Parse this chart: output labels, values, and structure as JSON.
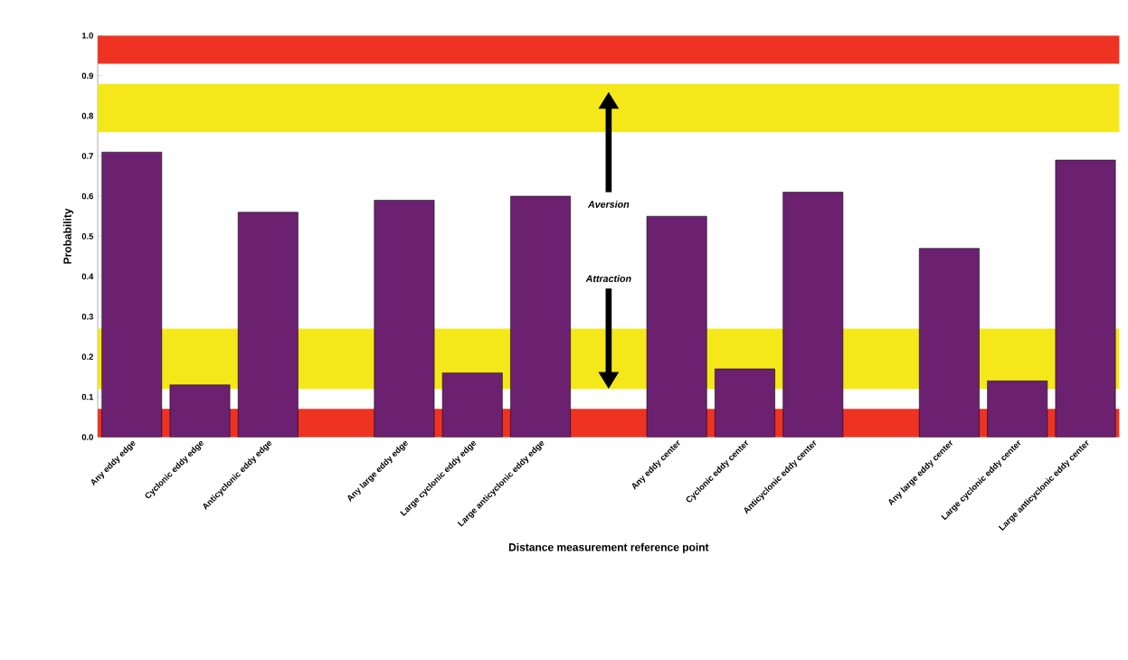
{
  "chart_data": {
    "type": "bar",
    "xlabel": "Distance measurement reference point",
    "ylabel": "Probability",
    "categories": [
      "Any eddy edge",
      "Cyclonic eddy edge",
      "Anticyclonic eddy edge",
      null,
      "Any large eddy edge",
      "Large cyclonic eddy edge",
      "Large anticyclonic eddy edge",
      null,
      "Any eddy center",
      "Cyclonic eddy center",
      "Anticyclonic eddy center",
      null,
      "Any large eddy center",
      "Large cyclonic eddy center",
      "Large anticyclonic eddy center"
    ],
    "values": [
      0.71,
      0.13,
      0.56,
      null,
      0.59,
      0.16,
      0.6,
      null,
      0.55,
      0.17,
      0.61,
      null,
      0.47,
      0.14,
      0.69
    ],
    "color": "#6b2170",
    "ylim": [
      0,
      1.0
    ],
    "yticks": [
      {
        "value": 0,
        "label": "0.0"
      },
      {
        "value": 0.1,
        "label": "0.1"
      },
      {
        "value": 0.2,
        "label": "0.2"
      },
      {
        "value": 0.3,
        "label": "0.3"
      },
      {
        "value": 0.4,
        "label": "0.4"
      },
      {
        "value": 0.5,
        "label": "0.5"
      },
      {
        "value": 0.6,
        "label": "0.6"
      },
      {
        "value": 0.7,
        "label": "0.7"
      },
      {
        "value": 0.8,
        "label": "0.8"
      },
      {
        "value": 0.9,
        "label": "0.9"
      },
      {
        "value": 1.0,
        "label": "1.0"
      }
    ],
    "bands": [
      {
        "axis": "y",
        "from": 0.93,
        "to": 1.0,
        "color": "#ee3322"
      },
      {
        "axis": "y",
        "from": 0.76,
        "to": 0.88,
        "color": "#f5e81a"
      },
      {
        "axis": "y",
        "from": 0.12,
        "to": 0.27,
        "color": "#f5e81a"
      },
      {
        "axis": "y",
        "from": 0.0,
        "to": 0.07,
        "color": "#ee3322"
      }
    ],
    "annotations": [
      "Aversion",
      "Attraction"
    ]
  }
}
